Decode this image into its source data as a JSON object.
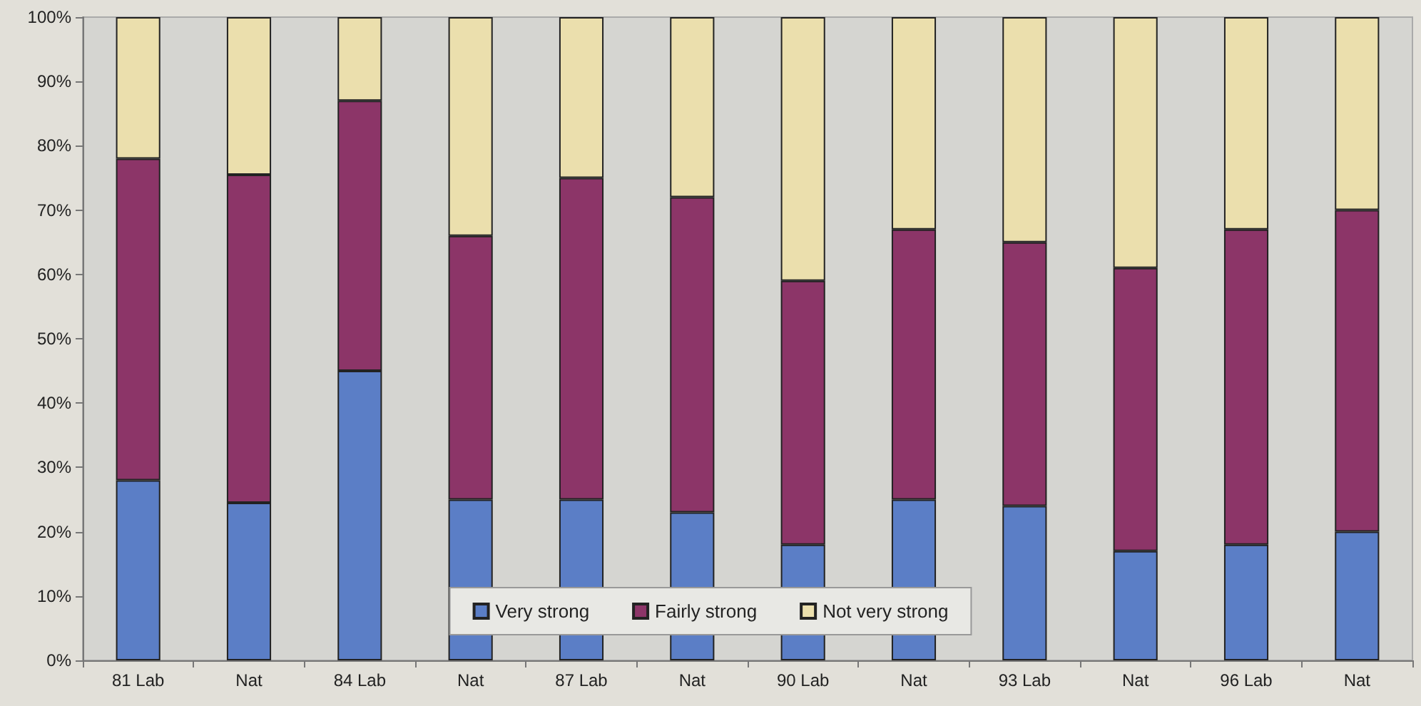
{
  "chart_data": {
    "type": "bar",
    "stacked": true,
    "categories": [
      "81 Lab",
      "Nat",
      "84 Lab",
      "Nat",
      "87 Lab",
      "Nat",
      "90 Lab",
      "Nat",
      "93 Lab",
      "Nat",
      "96 Lab",
      "Nat"
    ],
    "series": [
      {
        "name": "Very strong",
        "color": "#5b7ec6",
        "values": [
          28,
          24.5,
          45,
          25,
          25,
          23,
          18,
          25,
          24,
          17,
          18,
          20
        ]
      },
      {
        "name": "Fairly strong",
        "color": "#8c3568",
        "values": [
          50,
          51,
          42,
          41,
          50,
          49,
          41,
          42,
          41,
          44,
          49,
          50
        ]
      },
      {
        "name": "Not very strong",
        "color": "#ebdfad",
        "values": [
          22,
          24.5,
          13,
          34,
          25,
          28,
          41,
          33,
          35,
          39,
          33,
          30
        ]
      }
    ],
    "ylim": [
      0,
      100
    ],
    "yticks": [
      {
        "value": 0,
        "label": "0%"
      },
      {
        "value": 10,
        "label": "10%"
      },
      {
        "value": 20,
        "label": "20%"
      },
      {
        "value": 30,
        "label": "30%"
      },
      {
        "value": 40,
        "label": "40%"
      },
      {
        "value": 50,
        "label": "50%"
      },
      {
        "value": 60,
        "label": "60%"
      },
      {
        "value": 70,
        "label": "70%"
      },
      {
        "value": 80,
        "label": "80%"
      },
      {
        "value": 90,
        "label": "90%"
      },
      {
        "value": 100,
        "label": "100%"
      }
    ],
    "grid": false,
    "legend": "bottom"
  }
}
